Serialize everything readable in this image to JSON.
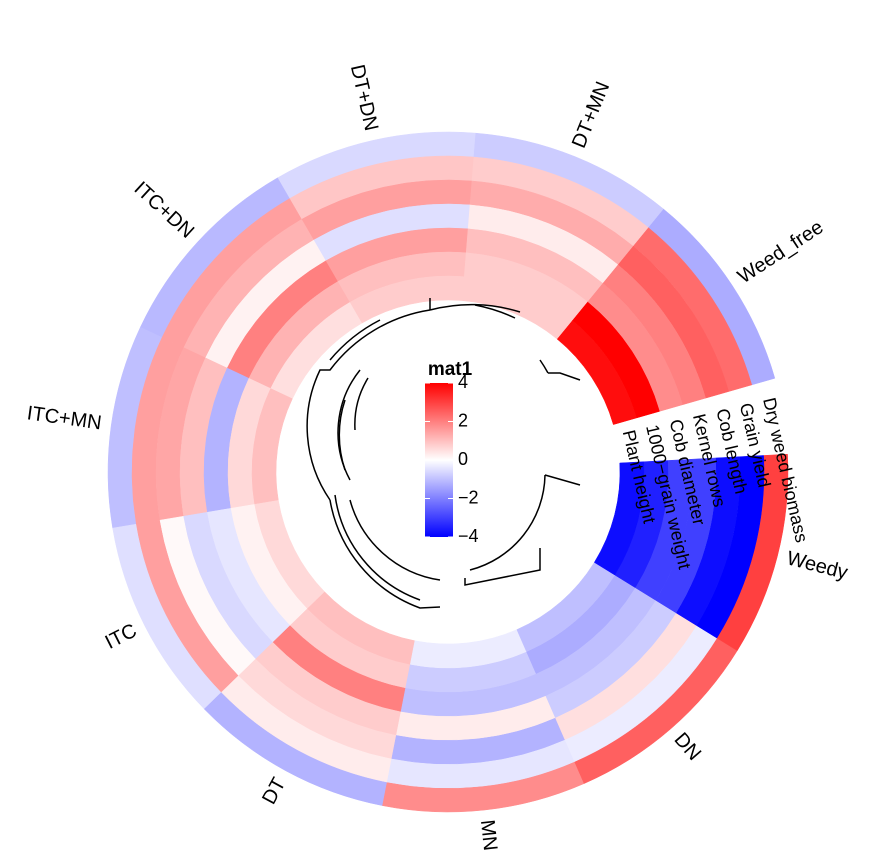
{
  "chart_data": {
    "type": "circular-heatmap",
    "sectors": [
      "Weed_free",
      "DT+MN",
      "DT+DN",
      "ITC+DN",
      "ITC+MN",
      "ITC",
      "DT",
      "MN",
      "DN",
      "Weedy"
    ],
    "tracks": [
      {
        "name": "Dry weed biomass",
        "values": [
          -1.3,
          -0.8,
          -0.6,
          -1.1,
          -1.0,
          -0.5,
          -1.2,
          1.8,
          2.5,
          3.0
        ]
      },
      {
        "name": "Grain yield",
        "values": [
          2.3,
          0.8,
          0.9,
          1.5,
          1.5,
          1.5,
          0.3,
          -0.4,
          -0.3,
          -4.0
        ]
      },
      {
        "name": "Cob length",
        "values": [
          2.5,
          1.3,
          1.5,
          1.2,
          1.4,
          0.1,
          0.6,
          -1.2,
          0.5,
          -3.8
        ]
      },
      {
        "name": "Kernel rows",
        "values": [
          2.0,
          0.3,
          -0.5,
          0.2,
          1.0,
          -0.6,
          0.8,
          0.3,
          -0.8,
          -3.0
        ]
      },
      {
        "name": "Cob diameter",
        "values": [
          1.8,
          1.0,
          1.5,
          2.0,
          -1.2,
          -0.4,
          2.0,
          -1.0,
          -1.0,
          -3.0
        ]
      },
      {
        "name": "1000−grain weight",
        "values": [
          4.0,
          0.8,
          1.0,
          1.2,
          0.6,
          0.2,
          0.8,
          -0.8,
          -1.3,
          -3.5
        ]
      },
      {
        "name": "Plant height",
        "values": [
          3.8,
          0.8,
          0.8,
          0.5,
          1.0,
          0.6,
          1.0,
          -0.3,
          -1.0,
          -3.8
        ]
      }
    ],
    "color_scale": {
      "domain": [
        -4,
        0,
        4
      ],
      "colors": [
        "#0000ff",
        "#ffffff",
        "#ff0000"
      ]
    },
    "legend": {
      "title": "mat1",
      "ticks": [
        4,
        2,
        0,
        {
          "value": -2,
          "label": "−2"
        },
        {
          "value": -4,
          "label": "−4"
        }
      ]
    }
  }
}
